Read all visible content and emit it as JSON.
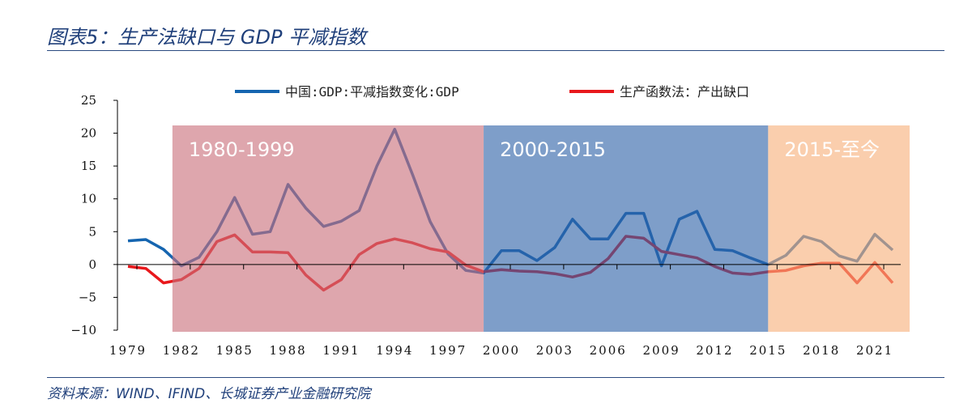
{
  "header": {
    "title": "图表5：生产法缺口与 GDP 平减指数"
  },
  "footer": {
    "source": "资料来源：WIND、IFIND、长城证券产业金融研究院"
  },
  "chart_data": {
    "type": "line",
    "title": "",
    "xlabel": "",
    "ylabel": "",
    "ylim": [
      -10,
      25
    ],
    "yticks": [
      25,
      20,
      15,
      10,
      5,
      0,
      -5,
      -10
    ],
    "xticks": [
      "1979",
      "1982",
      "1985",
      "1988",
      "1991",
      "1994",
      "1997",
      "2000",
      "2003",
      "2006",
      "2009",
      "2012",
      "2015",
      "2018",
      "2021"
    ],
    "legend_position": "top",
    "grid": false,
    "x": [
      1979,
      1980,
      1981,
      1982,
      1983,
      1984,
      1985,
      1986,
      1987,
      1988,
      1989,
      1990,
      1991,
      1992,
      1993,
      1994,
      1995,
      1996,
      1997,
      1998,
      1999,
      2000,
      2001,
      2002,
      2003,
      2004,
      2005,
      2006,
      2007,
      2008,
      2009,
      2010,
      2011,
      2012,
      2013,
      2014,
      2015,
      2016,
      2017,
      2018,
      2019,
      2020,
      2021,
      2022
    ],
    "series": [
      {
        "name": "中国:GDP:平减指数变化:GDP",
        "color": "#1565b0",
        "values": [
          3.6,
          3.8,
          2.3,
          -0.2,
          1.1,
          5.0,
          10.2,
          4.6,
          5.0,
          12.2,
          8.6,
          5.8,
          6.6,
          8.2,
          15.0,
          20.6,
          13.7,
          6.5,
          1.6,
          -0.9,
          -1.3,
          2.1,
          2.1,
          0.6,
          2.6,
          6.9,
          3.9,
          3.9,
          7.8,
          7.8,
          -0.2,
          6.9,
          8.1,
          2.3,
          2.1,
          1.0,
          0.0,
          1.4,
          4.3,
          3.5,
          1.3,
          0.5,
          4.6,
          2.2
        ]
      },
      {
        "name": "生产函数法：产出缺口",
        "color": "#e8181c",
        "values": [
          -0.3,
          -0.6,
          -2.8,
          -2.3,
          -0.6,
          3.5,
          4.5,
          1.9,
          1.9,
          1.8,
          -1.6,
          -3.9,
          -2.3,
          1.5,
          3.2,
          3.9,
          3.3,
          2.4,
          1.9,
          -0.1,
          -1.1,
          -0.8,
          -1.0,
          -1.1,
          -1.4,
          -1.9,
          -1.2,
          0.9,
          4.3,
          4.0,
          2.0,
          1.5,
          1.0,
          -0.3,
          -1.3,
          -1.5,
          -1.1,
          -0.9,
          -0.2,
          0.2,
          0.2,
          -2.8,
          0.3,
          -2.8
        ]
      }
    ],
    "annotations": [
      {
        "label": "1980-1999",
        "from": 1981.5,
        "to": 1999,
        "color": "#c9707a"
      },
      {
        "label": "2000-2015",
        "from": 1999,
        "to": 2015,
        "color": "#2f62a8"
      },
      {
        "label": "2015-至今",
        "from": 2015,
        "to": 2023,
        "color": "#f7b07a"
      }
    ]
  }
}
